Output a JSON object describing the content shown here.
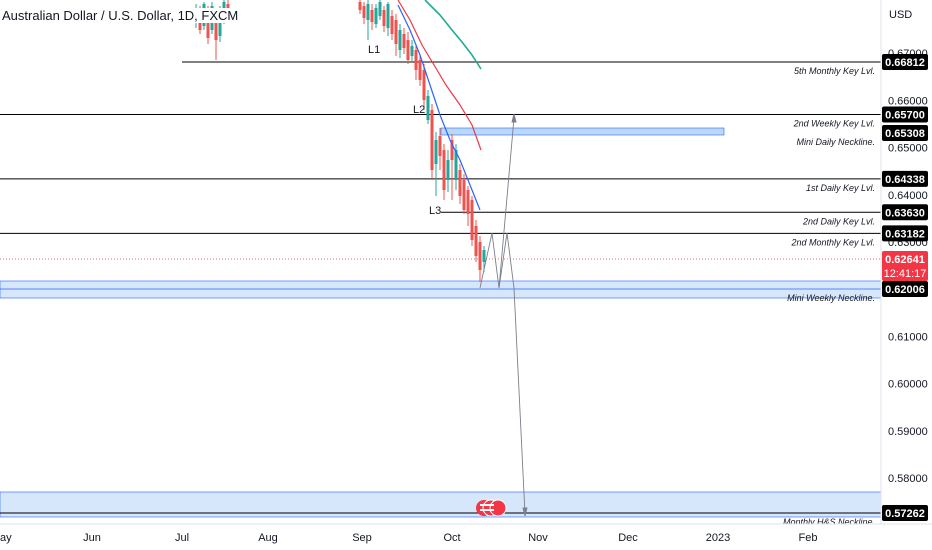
{
  "header": {
    "title": "Australian Dollar / U.S. Dollar, 1D, FXCM"
  },
  "chart_data": {
    "type": "candlestick",
    "currency": "USD",
    "y_range": [
      0.572,
      0.6755
    ],
    "y_ticks": [
      "0.67000",
      "0.66000",
      "0.65000",
      "0.64000",
      "0.63000",
      "0.62000",
      "0.61000",
      "0.60000",
      "0.59000",
      "0.58000"
    ],
    "x_ticks": [
      "ay",
      "Jun",
      "Jul",
      "Aug",
      "Sep",
      "Oct",
      "Nov",
      "Dec",
      "2023",
      "Feb"
    ],
    "key_levels": [
      {
        "price": "0.66812",
        "label": "5th Monthly Key Lvl.",
        "value": 0.66812
      },
      {
        "price": "0.65700",
        "label": "2nd Weekly Key Lvl.",
        "value": 0.657
      },
      {
        "price": "0.65308",
        "label": "Mini Daily Neckline.",
        "value": 0.65308
      },
      {
        "price": "0.64338",
        "label": "1st Daily Key Lvl.",
        "value": 0.64338
      },
      {
        "price": "0.63630",
        "label": "2nd Daily Key Lvl.",
        "value": 0.6363
      },
      {
        "price": "0.63182",
        "label": "2nd Monthly Key Lvl.",
        "value": 0.63182
      },
      {
        "price": "0.62006",
        "label": "Mini Weekly Neckline.",
        "value": 0.62006
      },
      {
        "price": "0.57262",
        "label": "Monthly H&S Neckline.",
        "value": 0.57262
      }
    ],
    "current_price": {
      "price": "0.62641",
      "countdown": "12:41:17",
      "value": 0.62641
    },
    "point_labels": [
      "L1",
      "L2",
      "L3"
    ],
    "colors": {
      "up": "#26a69a",
      "down": "#ef5350",
      "ma_fast": "#2962ff",
      "ma_mid": "#f23645",
      "ma_slow": "#22ab94",
      "zone": "#bbd9f7",
      "price_tag": "#000000",
      "current_tag": "#f23645"
    }
  }
}
